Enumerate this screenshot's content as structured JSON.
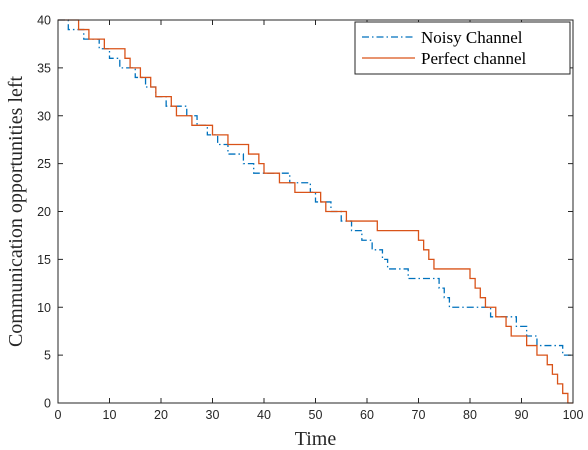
{
  "chart_data": {
    "type": "line",
    "xlabel": "Time",
    "ylabel": "Communication opportunities left",
    "xlim": [
      0,
      100
    ],
    "ylim": [
      0,
      40
    ],
    "xticks": [
      0,
      10,
      20,
      30,
      40,
      50,
      60,
      70,
      80,
      90,
      100
    ],
    "yticks": [
      0,
      5,
      10,
      15,
      20,
      25,
      30,
      35,
      40
    ],
    "grid": false,
    "legend_position": "top-right",
    "series": [
      {
        "name": "Noisy Channel",
        "style": "dash-dot",
        "color": "#0072BD",
        "points": [
          [
            0,
            40
          ],
          [
            2,
            40
          ],
          [
            2,
            39
          ],
          [
            5,
            39
          ],
          [
            5,
            38
          ],
          [
            8,
            38
          ],
          [
            8,
            37
          ],
          [
            10,
            37
          ],
          [
            10,
            36
          ],
          [
            12,
            36
          ],
          [
            12,
            35
          ],
          [
            15,
            35
          ],
          [
            15,
            34
          ],
          [
            17,
            34
          ],
          [
            17,
            33
          ],
          [
            19,
            33
          ],
          [
            19,
            32
          ],
          [
            21,
            32
          ],
          [
            21,
            31
          ],
          [
            25,
            31
          ],
          [
            25,
            30
          ],
          [
            27,
            30
          ],
          [
            27,
            29
          ],
          [
            29,
            29
          ],
          [
            29,
            28
          ],
          [
            31,
            28
          ],
          [
            31,
            27
          ],
          [
            33,
            27
          ],
          [
            33,
            26
          ],
          [
            36,
            26
          ],
          [
            36,
            25
          ],
          [
            38,
            25
          ],
          [
            38,
            24
          ],
          [
            45,
            24
          ],
          [
            45,
            23
          ],
          [
            49,
            23
          ],
          [
            49,
            22
          ],
          [
            50,
            22
          ],
          [
            50,
            21
          ],
          [
            53,
            21
          ],
          [
            53,
            20
          ],
          [
            55,
            20
          ],
          [
            55,
            19
          ],
          [
            57,
            19
          ],
          [
            57,
            18
          ],
          [
            59,
            18
          ],
          [
            59,
            17
          ],
          [
            61,
            17
          ],
          [
            61,
            16
          ],
          [
            63,
            16
          ],
          [
            63,
            15
          ],
          [
            64,
            15
          ],
          [
            64,
            14
          ],
          [
            68,
            14
          ],
          [
            68,
            13
          ],
          [
            74,
            13
          ],
          [
            74,
            12
          ],
          [
            75,
            12
          ],
          [
            75,
            11
          ],
          [
            76,
            11
          ],
          [
            76,
            10
          ],
          [
            84,
            10
          ],
          [
            84,
            9
          ],
          [
            89,
            9
          ],
          [
            89,
            8
          ],
          [
            91,
            8
          ],
          [
            91,
            7
          ],
          [
            93,
            7
          ],
          [
            93,
            6
          ],
          [
            98,
            6
          ],
          [
            98,
            5
          ],
          [
            100,
            5
          ]
        ]
      },
      {
        "name": "Perfect channel",
        "style": "solid",
        "color": "#D95319",
        "points": [
          [
            0,
            40
          ],
          [
            4,
            40
          ],
          [
            4,
            39
          ],
          [
            6,
            39
          ],
          [
            6,
            38
          ],
          [
            9,
            38
          ],
          [
            9,
            37
          ],
          [
            13,
            37
          ],
          [
            13,
            36
          ],
          [
            14,
            36
          ],
          [
            14,
            35
          ],
          [
            16,
            35
          ],
          [
            16,
            34
          ],
          [
            18,
            34
          ],
          [
            18,
            33
          ],
          [
            19,
            33
          ],
          [
            19,
            32
          ],
          [
            22,
            32
          ],
          [
            22,
            31
          ],
          [
            23,
            31
          ],
          [
            23,
            30
          ],
          [
            26,
            30
          ],
          [
            26,
            29
          ],
          [
            30,
            29
          ],
          [
            30,
            28
          ],
          [
            33,
            28
          ],
          [
            33,
            27
          ],
          [
            37,
            27
          ],
          [
            37,
            26
          ],
          [
            39,
            26
          ],
          [
            39,
            25
          ],
          [
            40,
            25
          ],
          [
            40,
            24
          ],
          [
            43,
            24
          ],
          [
            43,
            23
          ],
          [
            46,
            23
          ],
          [
            46,
            22
          ],
          [
            51,
            22
          ],
          [
            51,
            21
          ],
          [
            52,
            21
          ],
          [
            52,
            20
          ],
          [
            56,
            20
          ],
          [
            56,
            19
          ],
          [
            62,
            19
          ],
          [
            62,
            18
          ],
          [
            70,
            18
          ],
          [
            70,
            17
          ],
          [
            71,
            17
          ],
          [
            71,
            16
          ],
          [
            72,
            16
          ],
          [
            72,
            15
          ],
          [
            73,
            15
          ],
          [
            73,
            14
          ],
          [
            80,
            14
          ],
          [
            80,
            13
          ],
          [
            81,
            13
          ],
          [
            81,
            12
          ],
          [
            82,
            12
          ],
          [
            82,
            11
          ],
          [
            83,
            11
          ],
          [
            83,
            10
          ],
          [
            85,
            10
          ],
          [
            85,
            9
          ],
          [
            87,
            9
          ],
          [
            87,
            8
          ],
          [
            88,
            8
          ],
          [
            88,
            7
          ],
          [
            91,
            7
          ],
          [
            91,
            6
          ],
          [
            93,
            6
          ],
          [
            93,
            5
          ],
          [
            95,
            5
          ],
          [
            95,
            4
          ],
          [
            96,
            4
          ],
          [
            96,
            3
          ],
          [
            97,
            3
          ],
          [
            97,
            2
          ],
          [
            98,
            2
          ],
          [
            98,
            1
          ],
          [
            99,
            1
          ],
          [
            99,
            0
          ],
          [
            100,
            0
          ]
        ]
      }
    ]
  }
}
